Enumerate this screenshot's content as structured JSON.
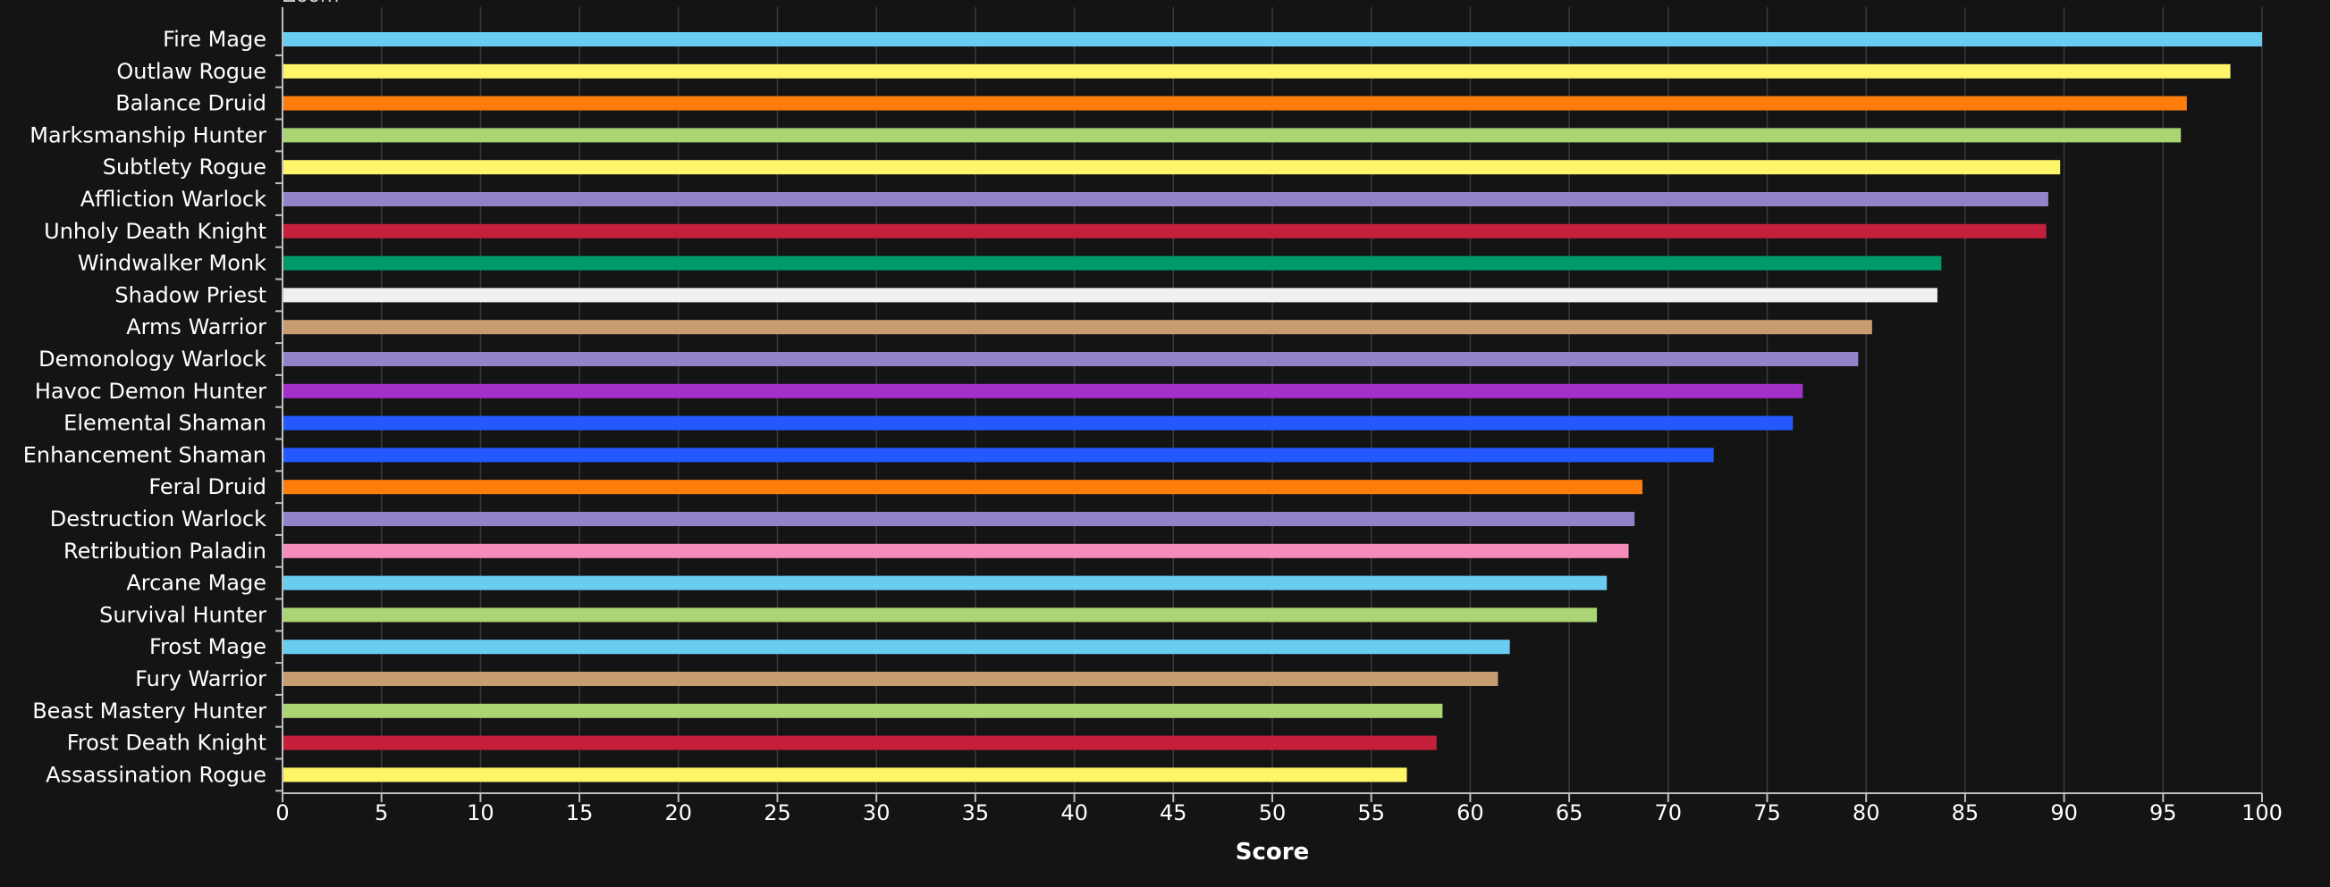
{
  "header": {
    "zoom_label": "Zoom"
  },
  "chart_data": {
    "type": "bar",
    "orientation": "horizontal",
    "categories": [
      "Fire Mage",
      "Outlaw Rogue",
      "Balance Druid",
      "Marksmanship Hunter",
      "Subtlety Rogue",
      "Affliction Warlock",
      "Unholy Death Knight",
      "Windwalker Monk",
      "Shadow Priest",
      "Arms Warrior",
      "Demonology Warlock",
      "Havoc Demon Hunter",
      "Elemental Shaman",
      "Enhancement Shaman",
      "Feral Druid",
      "Destruction Warlock",
      "Retribution Paladin",
      "Arcane Mage",
      "Survival Hunter",
      "Frost Mage",
      "Fury Warrior",
      "Beast Mastery Hunter",
      "Frost Death Knight",
      "Assassination Rogue"
    ],
    "values": [
      100,
      98.4,
      96.2,
      95.9,
      89.8,
      89.2,
      89.1,
      83.8,
      83.6,
      80.3,
      79.6,
      76.8,
      76.3,
      72.3,
      68.7,
      68.3,
      68.0,
      66.9,
      66.4,
      62.0,
      61.4,
      58.6,
      58.3,
      56.8
    ],
    "colors": [
      "#69CCF0",
      "#FFF569",
      "#FF7D0A",
      "#ABD473",
      "#FFF569",
      "#9482C9",
      "#C41F3B",
      "#00996A",
      "#F0F0F0",
      "#C79C6E",
      "#9482C9",
      "#A330C9",
      "#2459FF",
      "#2459FF",
      "#FF7D0A",
      "#9482C9",
      "#F58CBA",
      "#69CCF0",
      "#ABD473",
      "#69CCF0",
      "#C79C6E",
      "#ABD473",
      "#C41F3B",
      "#FFF569"
    ],
    "xlabel": "Score",
    "ylabel": "",
    "title": "",
    "xlim": [
      0,
      100
    ],
    "xticks": [
      0,
      5,
      10,
      15,
      20,
      25,
      30,
      35,
      40,
      45,
      50,
      55,
      60,
      65,
      70,
      75,
      80,
      85,
      90,
      95,
      100
    ],
    "grid": true,
    "background_color": "#141414"
  }
}
